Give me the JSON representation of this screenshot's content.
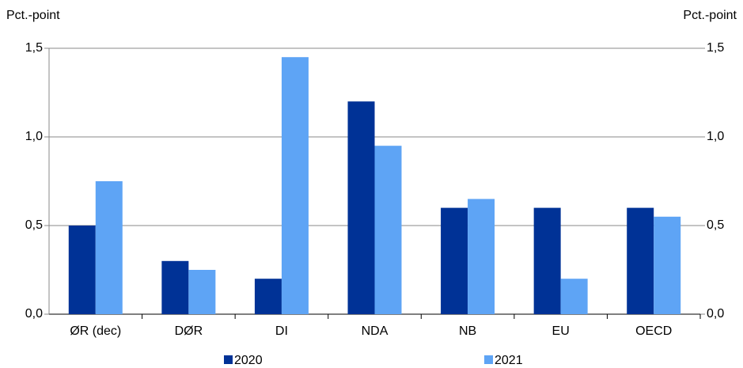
{
  "chart_data": {
    "type": "bar",
    "ylabel": "Pct.-point",
    "y2label": "Pct.-point",
    "categories": [
      "ØR (dec)",
      "DØR",
      "DI",
      "NDA",
      "NB",
      "EU",
      "OECD"
    ],
    "series": [
      {
        "name": "2020",
        "color": "#003296",
        "values": [
          0.5,
          0.3,
          0.2,
          1.2,
          0.6,
          0.6,
          0.6
        ]
      },
      {
        "name": "2021",
        "color": "#5ea4f5",
        "values": [
          0.75,
          0.25,
          1.45,
          0.95,
          0.65,
          0.2,
          0.55
        ]
      }
    ],
    "ylim": [
      0,
      1.5
    ],
    "yticks": [
      {
        "value": 0,
        "label": "0,0"
      },
      {
        "value": 0.5,
        "label": "0,5"
      },
      {
        "value": 1,
        "label": "1,0"
      },
      {
        "value": 1.5,
        "label": "1,5"
      }
    ],
    "y2lim": [
      0,
      1.5
    ],
    "y2ticks": [
      {
        "value": 0,
        "label": "0,0"
      },
      {
        "value": 0.5,
        "label": "0,5"
      },
      {
        "value": 1,
        "label": "1,0"
      },
      {
        "value": 1.5,
        "label": "1,5"
      }
    ],
    "grid": true,
    "legend": "bottom"
  }
}
